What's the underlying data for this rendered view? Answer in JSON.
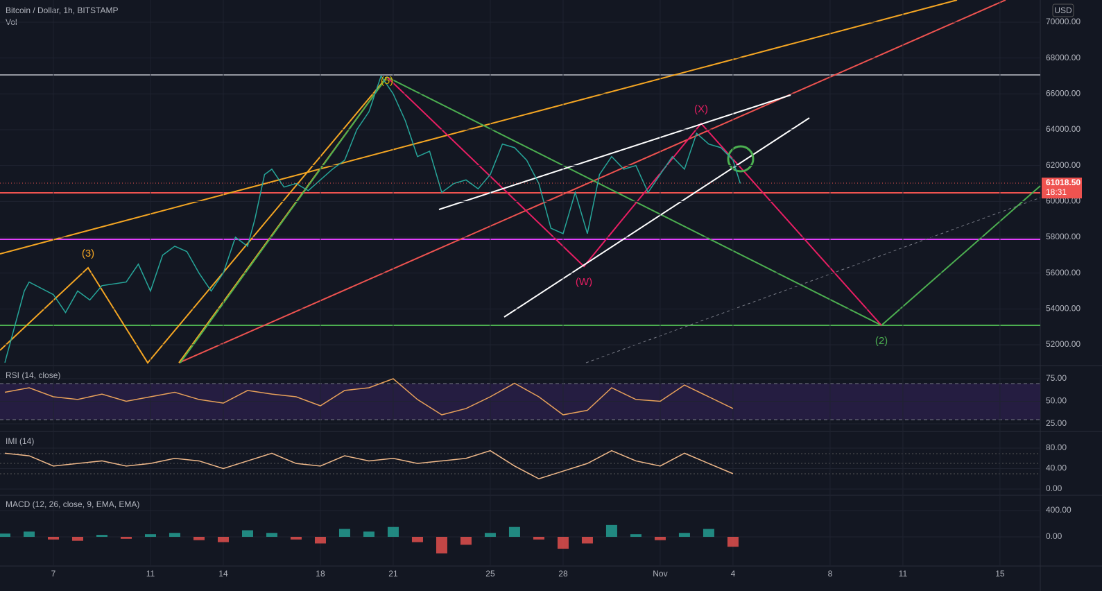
{
  "chart_data": [
    {
      "type": "line",
      "title": "Bitcoin / Dollar, 1h, BITSTAMP",
      "subtitle": "Vol",
      "currency": "USD",
      "color": "#26a69a",
      "x": [
        5,
        5.8,
        6,
        7,
        7.5,
        8,
        8.5,
        9,
        10,
        10.5,
        11,
        11.5,
        12,
        12.5,
        13,
        13.5,
        14,
        14.5,
        15,
        15.3,
        15.7,
        16,
        16.5,
        17,
        17.5,
        18,
        18.5,
        19,
        19.5,
        20,
        20.5,
        21,
        21.5,
        22,
        22.5,
        23,
        23.5,
        24,
        24.5,
        25,
        25.5,
        26,
        26.5,
        27,
        27.5,
        28,
        28.5,
        29,
        29.5,
        30,
        30.5,
        31,
        31.5,
        32,
        32.5,
        33,
        33.5,
        34,
        34.5,
        35,
        35.3
      ],
      "values": [
        51000,
        55000,
        55500,
        54800,
        53800,
        55000,
        54500,
        55300,
        55500,
        56500,
        55000,
        57000,
        57500,
        57200,
        56000,
        55000,
        56000,
        58000,
        57500,
        59000,
        61500,
        61800,
        60800,
        61000,
        60600,
        61200,
        61800,
        62300,
        64000,
        65000,
        67000,
        66000,
        64500,
        62500,
        62800,
        60500,
        61000,
        61200,
        60700,
        61500,
        63200,
        63000,
        62300,
        61000,
        58500,
        58200,
        60500,
        58200,
        61500,
        62500,
        61800,
        62000,
        60500,
        61500,
        62500,
        61800,
        63800,
        63200,
        63000,
        62300,
        61000
      ],
      "xlim": [
        4.8,
        47.66
      ],
      "xticks": [
        7,
        11,
        14,
        18,
        21,
        25,
        28,
        {
          "value": 32,
          "label": "Nov"
        },
        {
          "value": 35,
          "label": "4"
        },
        {
          "value": 39,
          "label": "8"
        },
        {
          "value": 42,
          "label": "11"
        },
        {
          "value": 46,
          "label": "15"
        }
      ],
      "ylim": [
        50917,
        71239
      ],
      "yticks": [
        {
          "value": 52000,
          "label": "52000.00"
        },
        {
          "value": 54000,
          "label": "54000.00"
        },
        {
          "value": 56000,
          "label": "56000.00"
        },
        {
          "value": 58000,
          "label": "58000.00"
        },
        {
          "value": 60000,
          "label": "60000.00"
        },
        {
          "value": 62000,
          "label": "62000.00"
        },
        {
          "value": 64000,
          "label": "64000.00"
        },
        {
          "value": 66000,
          "label": "66000.00"
        },
        {
          "value": 68000,
          "label": "68000.00"
        },
        {
          "value": 70000,
          "label": "70000.00"
        }
      ],
      "last_price": {
        "value": 61018.5,
        "label": "61018.50"
      },
      "countdown": "18:31",
      "annotations": [
        "(3)",
        "(5)",
        "(X)",
        "(W)",
        "(2)"
      ]
    },
    {
      "type": "line",
      "title": "RSI (14, close)",
      "color": "#e8a15a",
      "x": [
        5,
        6,
        7,
        8,
        9,
        10,
        11,
        12,
        13,
        14,
        15,
        16,
        17,
        18,
        19,
        20,
        21,
        22,
        23,
        24,
        25,
        26,
        27,
        28,
        29,
        30,
        31,
        32,
        33,
        34,
        35
      ],
      "values": [
        60,
        65,
        55,
        52,
        58,
        50,
        55,
        60,
        52,
        48,
        62,
        58,
        55,
        45,
        62,
        65,
        75,
        52,
        35,
        42,
        55,
        70,
        55,
        35,
        40,
        65,
        52,
        50,
        68,
        55,
        42
      ],
      "ylim": [
        18.1,
        87.3
      ],
      "yticks": [
        {
          "value": 25,
          "label": "25.00"
        },
        {
          "value": 50,
          "label": "50.00"
        },
        {
          "value": 75,
          "label": "75.00"
        }
      ]
    },
    {
      "type": "line",
      "title": "IMI (14)",
      "color": "#f0b98a",
      "x": [
        5,
        6,
        7,
        8,
        9,
        10,
        11,
        12,
        13,
        14,
        15,
        16,
        17,
        18,
        19,
        20,
        21,
        22,
        23,
        24,
        25,
        26,
        27,
        28,
        29,
        30,
        31,
        32,
        33,
        34,
        35
      ],
      "values": [
        70,
        65,
        45,
        50,
        55,
        45,
        50,
        60,
        55,
        40,
        55,
        70,
        50,
        45,
        65,
        55,
        60,
        50,
        55,
        60,
        75,
        45,
        20,
        35,
        50,
        75,
        55,
        45,
        70,
        50,
        30
      ],
      "ylim": [
        -9.5,
        108.5
      ],
      "yticks": [
        {
          "value": 0,
          "label": "0.00"
        },
        {
          "value": 40,
          "label": "40.00"
        },
        {
          "value": 80,
          "label": "80.00"
        }
      ]
    },
    {
      "type": "bar",
      "title": "MACD (12, 26, close, 9, EMA, EMA)",
      "colors": {
        "positive": "#26a69a",
        "negative": "#ef5350"
      },
      "x": [
        5,
        6,
        7,
        8,
        9,
        10,
        11,
        12,
        13,
        14,
        15,
        16,
        17,
        18,
        19,
        20,
        21,
        22,
        23,
        24,
        25,
        26,
        27,
        28,
        29,
        30,
        31,
        32,
        33,
        34,
        35
      ],
      "values": [
        50,
        80,
        -40,
        -60,
        30,
        -30,
        40,
        60,
        -50,
        -80,
        100,
        60,
        -40,
        -100,
        120,
        80,
        150,
        -80,
        -250,
        -120,
        60,
        150,
        -40,
        -180,
        -100,
        180,
        40,
        -50,
        60,
        120,
        -150
      ],
      "ylim": [
        -432,
        610
      ],
      "yticks": [
        {
          "value": 0,
          "label": "0.00"
        },
        {
          "value": 400,
          "label": "400.00"
        }
      ]
    }
  ]
}
